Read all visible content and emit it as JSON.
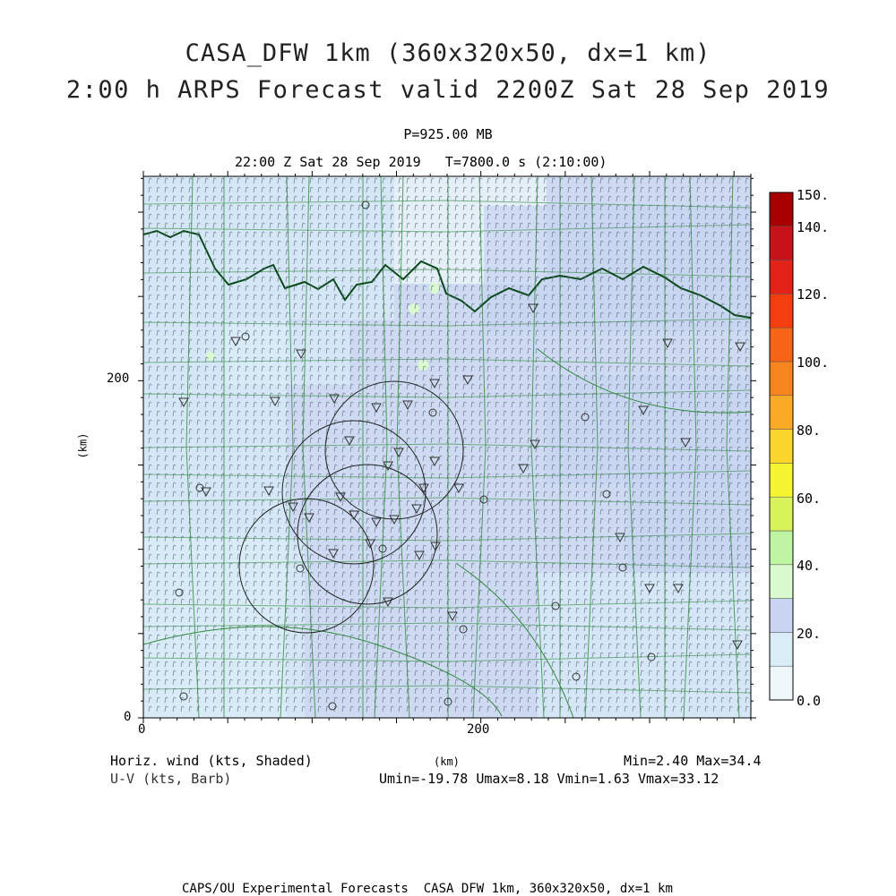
{
  "header": {
    "title_line1": "CASA_DFW 1km (360x320x50, dx=1 km)",
    "title_line2": "2:00 h ARPS Forecast valid 2200Z Sat 28 Sep 2019",
    "pressure": "P=925.00 MB",
    "valid_time": "22:00 Z Sat 28 Sep 2019   T=7800.0 s (2:10:00)"
  },
  "axes": {
    "x_ticks": [
      "0",
      "200"
    ],
    "y_ticks": [
      "0",
      "200"
    ],
    "x_label": "(km)",
    "y_label": "(km)"
  },
  "legend": {
    "field_label": "Horiz. wind (kts, Shaded)",
    "vector_label": "U-V (kts, Barb)",
    "minmax": "Min=2.40 Max=34.4",
    "uv_stats": "Umin=-19.78 Umax=8.18 Vmin=1.63 Vmax=33.12"
  },
  "colorbar": {
    "labels": [
      "150.",
      "140.",
      "120.",
      "100.",
      "80.",
      "60.",
      "40.",
      "20.",
      "0.0"
    ],
    "colors": [
      "#eef8fb",
      "#d9ecf8",
      "#c8d4f2",
      "#d9fbcf",
      "#bff5a2",
      "#d8f45a",
      "#f5f430",
      "#fbd52a",
      "#fbaa28",
      "#f7851e",
      "#f76418",
      "#f43e10",
      "#e3221a",
      "#c8121a",
      "#a80000"
    ]
  },
  "map": {
    "background_color": "#cddaf1",
    "county_line_color": "#2f8a3a",
    "river_color": "#0a4a1a",
    "radar_ring_color": "#222222"
  },
  "footer": {
    "credit": "CAPS/OU Experimental Forecasts  CASA DFW 1km, 360x320x50, dx=1 km"
  }
}
